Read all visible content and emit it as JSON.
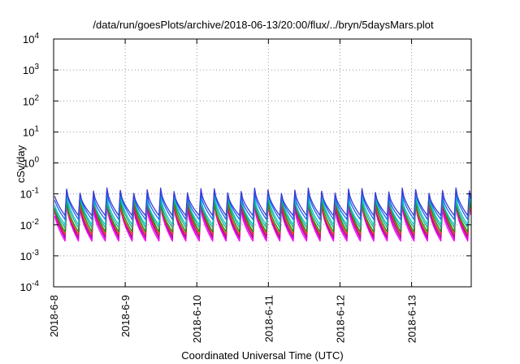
{
  "chart_data": {
    "type": "line",
    "title": "/data/run/goesPlots/archive/2018-06-13/20:00/flux/../bryn/5daysMars.plot",
    "xlabel": "Coordinated Universal Time (UTC)",
    "ylabel": "cSv/day",
    "yscale": "log",
    "ylim": [
      0.0001,
      10000
    ],
    "xlim": [
      "2018-06-08T00:00",
      "2018-06-13T20:00"
    ],
    "grid": true,
    "legend": "none",
    "x_tick_labels": [
      "2018-6-8",
      "2018-6-9",
      "2018-6-10",
      "2018-6-11",
      "2018-6-12",
      "2018-6-13"
    ],
    "x_tick_dates": [
      "2018-06-08T00:00",
      "2018-06-09T00:00",
      "2018-06-10T00:00",
      "2018-06-11T00:00",
      "2018-06-12T00:00",
      "2018-06-13T00:00"
    ],
    "y_tick_labels": [
      {
        "base": "10",
        "exp": "-4",
        "value": 0.0001
      },
      {
        "base": "10",
        "exp": "-3",
        "value": 0.001
      },
      {
        "base": "10",
        "exp": "-2",
        "value": 0.01
      },
      {
        "base": "10",
        "exp": "-1",
        "value": 0.1
      },
      {
        "base": "10",
        "exp": "0",
        "value": 1
      },
      {
        "base": "10",
        "exp": "1",
        "value": 10
      },
      {
        "base": "10",
        "exp": "2",
        "value": 100
      },
      {
        "base": "10",
        "exp": "3",
        "value": 1000
      },
      {
        "base": "10",
        "exp": "4",
        "value": 10000
      }
    ],
    "pulse_period_hours": 4.5,
    "series": [
      {
        "color": "#ff00ff",
        "peak": 0.04,
        "trough": 0.003
      },
      {
        "color": "#cc00cc",
        "peak": 0.048,
        "trough": 0.0036
      },
      {
        "color": "#a0206a",
        "peak": 0.055,
        "trough": 0.0042
      },
      {
        "color": "#ff3030",
        "peak": 0.06,
        "trough": 0.005
      },
      {
        "color": "#00a000",
        "peak": 0.07,
        "trough": 0.006
      },
      {
        "color": "#2ea88a",
        "peak": 0.08,
        "trough": 0.008
      },
      {
        "color": "#00c8c8",
        "peak": 0.09,
        "trough": 0.01
      },
      {
        "color": "#1f5fff",
        "peak": 0.11,
        "trough": 0.015
      },
      {
        "color": "#3b3bd4",
        "peak": 0.13,
        "trough": 0.02
      }
    ],
    "series_note_values": "peak/trough values in cSv/day"
  }
}
